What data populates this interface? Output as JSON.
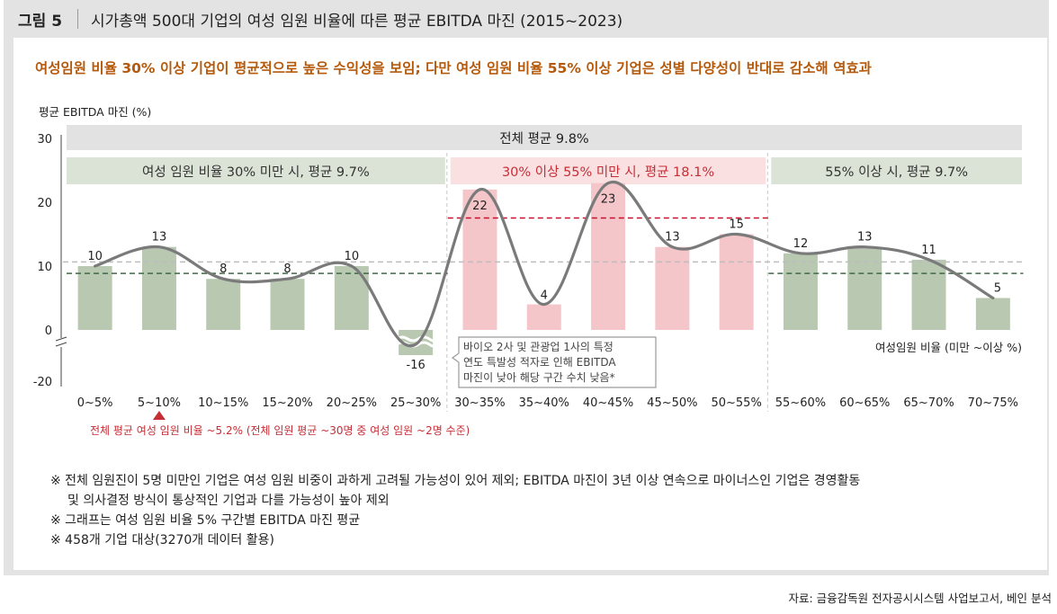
{
  "figure": {
    "label": "그림 5",
    "title": "시가총액 500대 기업의 여성 임원 비율에 따른 평균 EBITDA 마진 (2015~2023)",
    "subtitle": "여성임원 비율 30% 이상 기업이 평균적으로 높은 수익성을 보임; 다만 여성 임원 비율 55% 이상 기업은 성별 다양성이 반대로 감소해 역효과"
  },
  "chart_data": {
    "type": "bar",
    "ylabel": "평균 EBITDA 마진 (%)",
    "xlabel": "여성임원  비율 (미만 ~이상 %)",
    "y_ticks": [
      "30",
      "20",
      "10",
      "0",
      "-20"
    ],
    "ylim": [
      -20,
      30
    ],
    "y_axis_break": "0 to -20 axis break",
    "categories": [
      "0~5%",
      "5~10%",
      "10~15%",
      "15~20%",
      "20~25%",
      "25~30%",
      "30~35%",
      "35~40%",
      "40~45%",
      "45~50%",
      "50~55%",
      "55~60%",
      "60~65%",
      "65~70%",
      "70~75%"
    ],
    "values": [
      10,
      13,
      8,
      8,
      10,
      -16,
      22,
      4,
      23,
      13,
      15,
      12,
      13,
      11,
      5
    ],
    "value_labels": [
      "10",
      "13",
      "8",
      "8",
      "10",
      "-16",
      "22",
      "4",
      "23",
      "13",
      "15",
      "12",
      "13",
      "11",
      "5"
    ],
    "groups": [
      {
        "label": "여성 임원 비율 30% 미만 시, 평균 9.7%",
        "from": 0,
        "to": 5,
        "average": 9.7,
        "bar_color": "#b9c9b1",
        "band_color": "#dbe3d6",
        "label_color": "#333333",
        "avg_line_color": "#3f6b47"
      },
      {
        "label": "30% 이상 55% 미만 시, 평균 18.1%",
        "from": 6,
        "to": 10,
        "average": 18.1,
        "bar_color": "#f4c6c9",
        "band_color": "#fbe0e2",
        "label_color": "#c62e36",
        "avg_line_color": "#c8102e"
      },
      {
        "label": "55% 이상 시, 평균 9.7%",
        "from": 11,
        "to": 14,
        "average": 9.7,
        "bar_color": "#b9c9b1",
        "band_color": "#dbe3d6",
        "label_color": "#333333",
        "avg_line_color": "#3f6b47"
      }
    ],
    "overall": {
      "label": "전체 평균 9.8%",
      "average": 9.8,
      "line_color": "#bdbdbd"
    },
    "trend_line_color": "#7a7a7a",
    "marker": {
      "category_index": 1,
      "text": "전체 평균 여성 임원 비율 ~5.2% (전체 임원 평균 ~30명 중 여성 임원 ~2명 수준)",
      "color": "#c62e36"
    },
    "annotation": {
      "lines": [
        "바이오  2사  및  관광업  1사의  특정",
        "연도  특발성  적자로  인해  EBITDA",
        "마진이  낮아  해당  구간  수치  낮음*"
      ]
    }
  },
  "notes": {
    "line1": "※ 전체 임원진이 5명 미만인 기업은 여성 임원 비중이 과하게 고려될 가능성이 있어 제외; EBITDA 마진이 3년 이상 연속으로 마이너스인 기업은 경영활동",
    "line2": "및 의사결정 방식이 통상적인 기업과 다를 가능성이 높아 제외",
    "line3": "※ 그래프는 여성 임원 비율 5% 구간별 EBITDA 마진 평균",
    "line4": "※ 458개 기업 대상(3270개 데이터 활용)"
  },
  "source": "자료: 금융감독원 전자공시시스템 사업보고서, 베인 분석"
}
